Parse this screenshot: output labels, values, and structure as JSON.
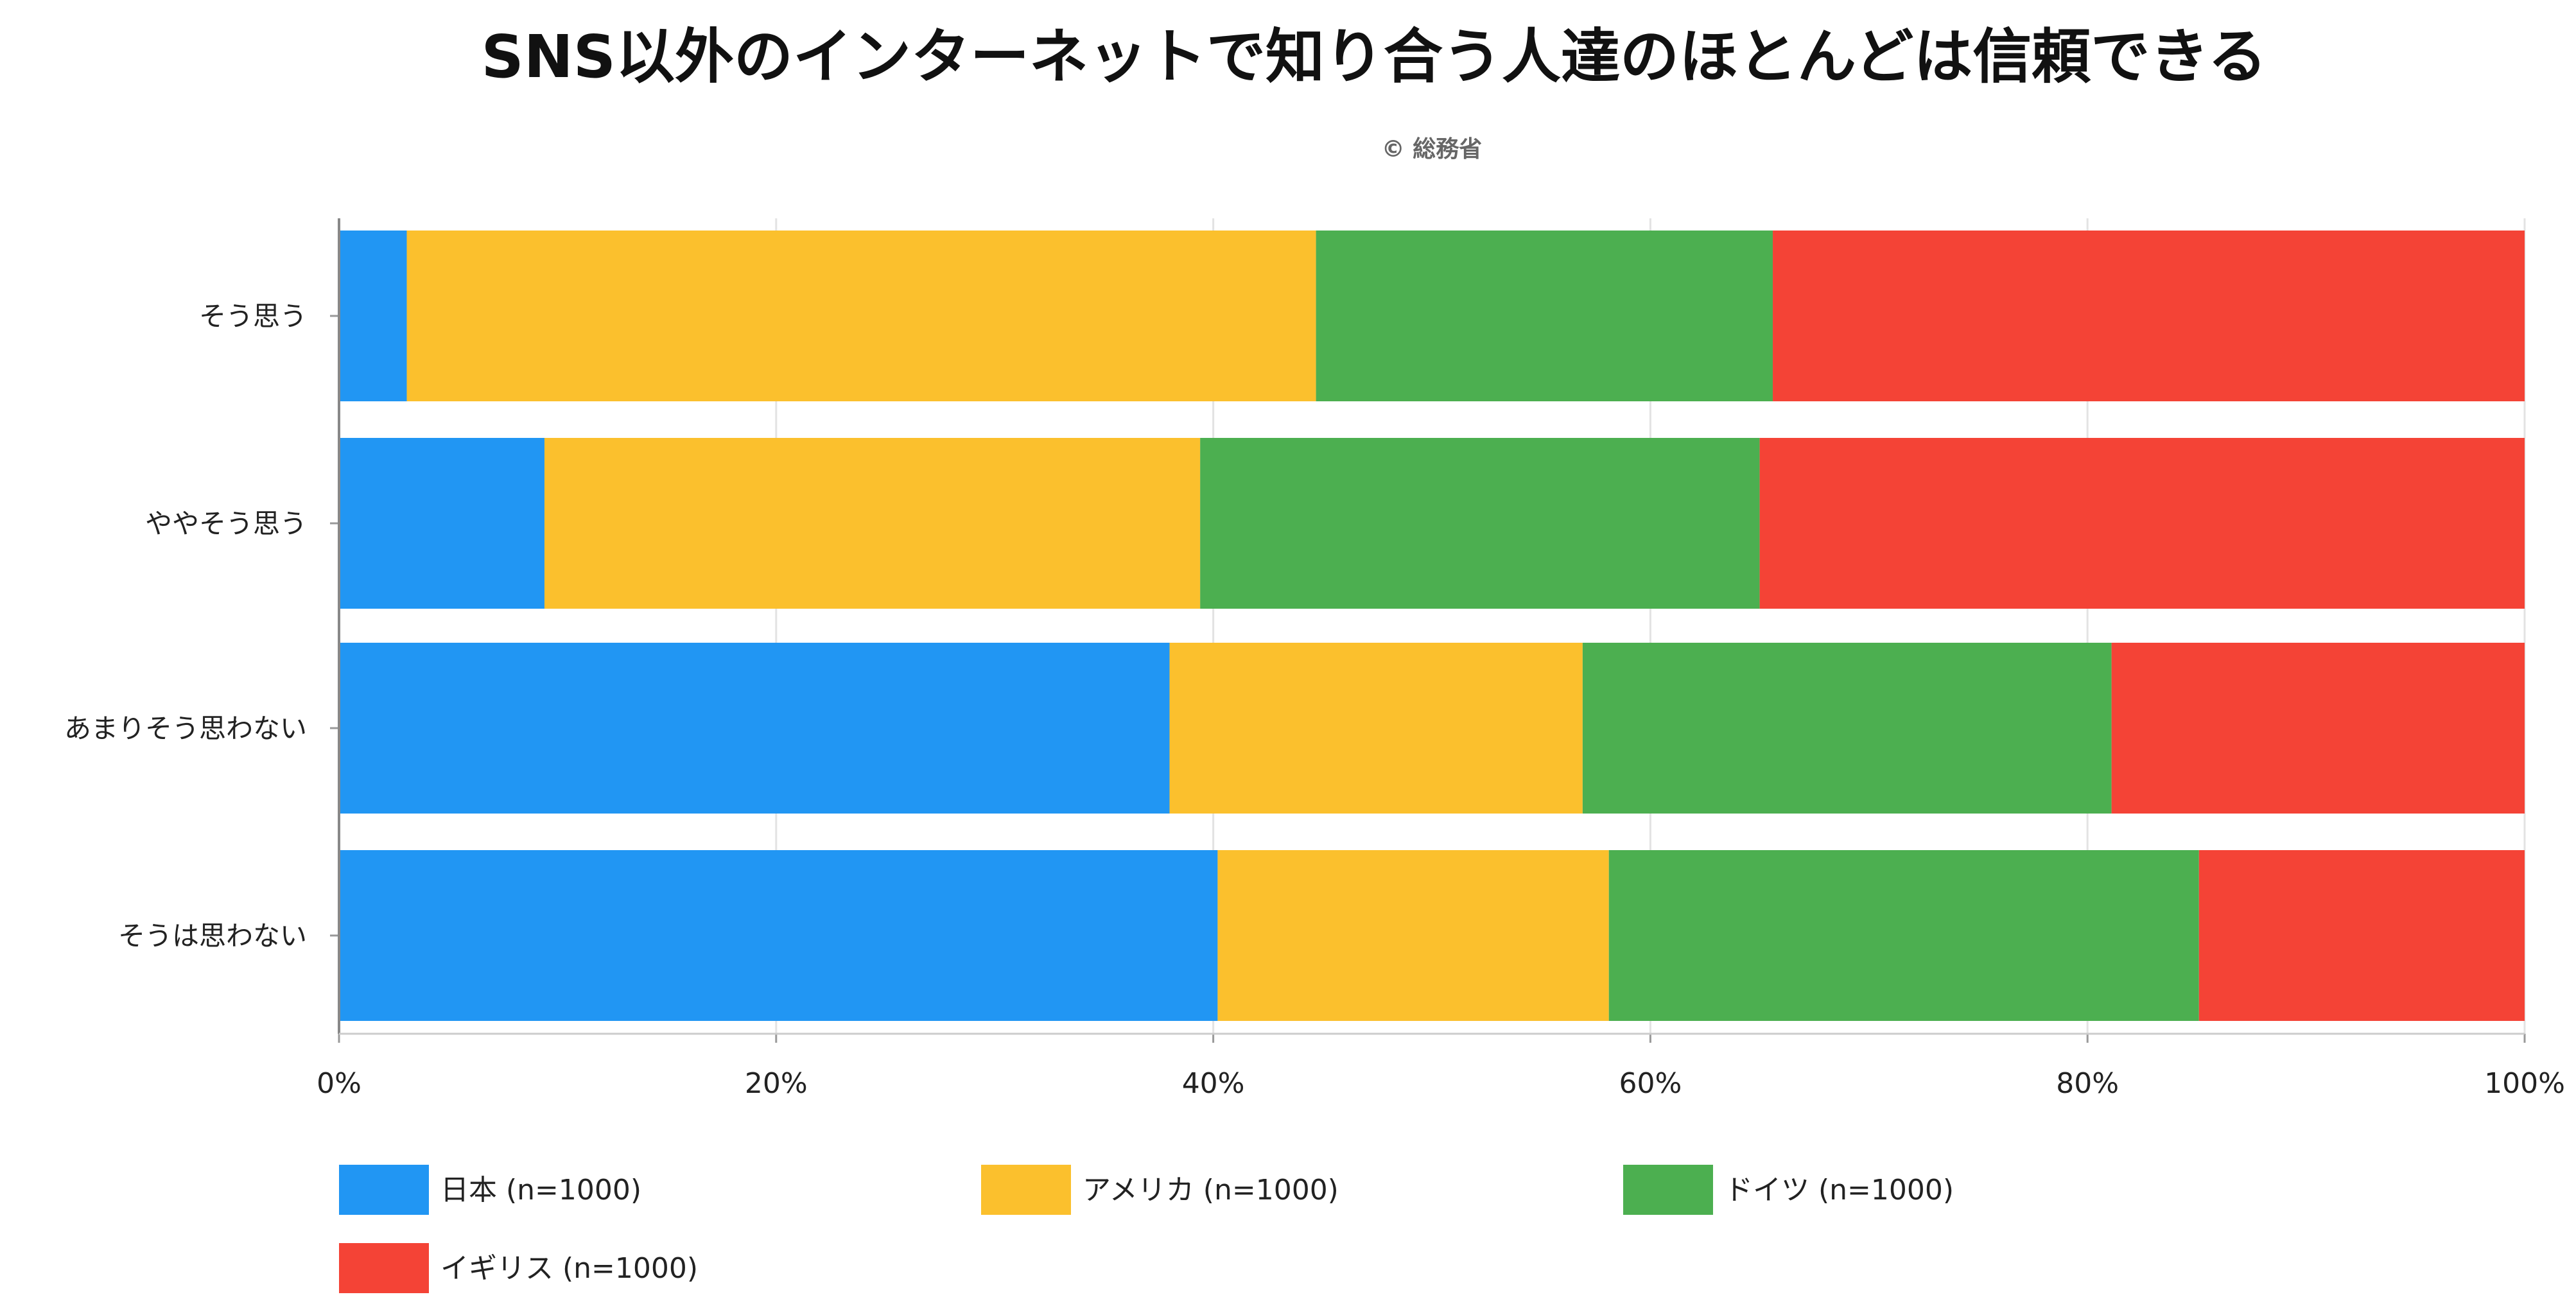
{
  "chart_data": {
    "type": "bar",
    "orientation": "horizontal",
    "stacked": true,
    "normalized": true,
    "title": "SNS以外のインターネットで知り合う人達のほとんどは信頼できる",
    "subtitle": "© 総務省",
    "categories": [
      "そう思う",
      "ややそう思う",
      "あまりそう思わない",
      "そうは思わない"
    ],
    "series": [
      {
        "name": "日本 (n=1000)",
        "color": "#2196F3",
        "values": [
          3.1,
          9.4,
          38.0,
          40.2
        ]
      },
      {
        "name": "アメリカ (n=1000)",
        "color": "#FBC02D",
        "values": [
          41.6,
          30.0,
          18.9,
          17.9
        ]
      },
      {
        "name": "ドイツ (n=1000)",
        "color": "#4CAF50",
        "values": [
          20.9,
          25.6,
          24.2,
          27.0
        ]
      },
      {
        "name": "イギリス (n=1000)",
        "color": "#F44336",
        "values": [
          34.4,
          35.0,
          18.9,
          14.9
        ]
      }
    ],
    "x_ticks": [
      "0%",
      "20%",
      "40%",
      "60%",
      "80%",
      "100%"
    ],
    "xlim": [
      0,
      100
    ],
    "xlabel": "",
    "ylabel": "",
    "grid": true,
    "legend_position": "bottom"
  }
}
